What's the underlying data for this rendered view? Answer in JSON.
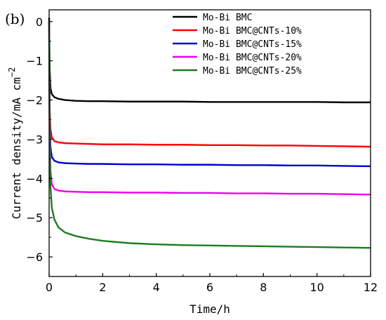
{
  "panel_label": "(b)",
  "chart_data": {
    "type": "line",
    "title": "",
    "xlabel": "Time/h",
    "ylabel": "Current density/mA cm",
    "ylabel_superscript": "−2",
    "xlim": [
      0,
      12
    ],
    "ylim": [
      -6.5,
      0.3
    ],
    "x_ticks": [
      0,
      2,
      4,
      6,
      8,
      10,
      12
    ],
    "y_ticks": [
      0,
      -1,
      -2,
      -3,
      -4,
      -5,
      -6
    ],
    "grid": false,
    "legend_position": "top-right",
    "series": [
      {
        "name": "Mo-Bi BMC",
        "color": "#000000",
        "x": [
          0,
          0.02,
          0.05,
          0.1,
          0.2,
          0.35,
          0.6,
          1,
          1.5,
          2,
          3,
          4,
          5,
          6,
          7,
          8,
          9,
          10,
          11,
          12
        ],
        "y": [
          0.1,
          -1.2,
          -1.7,
          -1.85,
          -1.93,
          -1.97,
          -2.0,
          -2.02,
          -2.03,
          -2.03,
          -2.04,
          -2.04,
          -2.04,
          -2.05,
          -2.05,
          -2.05,
          -2.05,
          -2.05,
          -2.06,
          -2.06
        ]
      },
      {
        "name": "Mo-Bi BMC@CNTs-10%",
        "color": "#ff0000",
        "x": [
          0,
          0.02,
          0.05,
          0.1,
          0.2,
          0.35,
          0.6,
          1,
          1.5,
          2,
          3,
          4,
          5,
          6,
          7,
          8,
          9,
          10,
          11,
          12
        ],
        "y": [
          0,
          -2.2,
          -2.75,
          -2.95,
          -3.05,
          -3.08,
          -3.1,
          -3.11,
          -3.12,
          -3.13,
          -3.13,
          -3.14,
          -3.14,
          -3.15,
          -3.15,
          -3.16,
          -3.16,
          -3.17,
          -3.18,
          -3.19
        ]
      },
      {
        "name": "Mo-Bi BMC@CNTs-15%",
        "color": "#0000d0",
        "x": [
          0,
          0.02,
          0.05,
          0.1,
          0.2,
          0.35,
          0.6,
          1,
          1.5,
          2,
          3,
          4,
          5,
          6,
          7,
          8,
          9,
          10,
          11,
          12
        ],
        "y": [
          0,
          -2.5,
          -3.2,
          -3.45,
          -3.55,
          -3.59,
          -3.61,
          -3.62,
          -3.63,
          -3.63,
          -3.64,
          -3.64,
          -3.65,
          -3.65,
          -3.66,
          -3.66,
          -3.67,
          -3.67,
          -3.68,
          -3.69
        ]
      },
      {
        "name": "Mo-Bi BMC@CNTs-20%",
        "color": "#ee00ee",
        "x": [
          0,
          0.02,
          0.05,
          0.1,
          0.2,
          0.35,
          0.6,
          1,
          1.5,
          2,
          3,
          4,
          5,
          6,
          7,
          8,
          9,
          10,
          11,
          12
        ],
        "y": [
          0,
          -2.8,
          -3.8,
          -4.15,
          -4.27,
          -4.31,
          -4.33,
          -4.34,
          -4.35,
          -4.35,
          -4.36,
          -4.36,
          -4.37,
          -4.37,
          -4.38,
          -4.38,
          -4.39,
          -4.39,
          -4.4,
          -4.41
        ]
      },
      {
        "name": "Mo-Bi BMC@CNTs-25%",
        "color": "#1e7b1e",
        "x": [
          0,
          0.02,
          0.05,
          0.1,
          0.2,
          0.35,
          0.6,
          1,
          1.5,
          2,
          3,
          4,
          5,
          6,
          7,
          8,
          9,
          10,
          11,
          12
        ],
        "y": [
          0,
          -3.0,
          -4.2,
          -4.75,
          -5.05,
          -5.25,
          -5.38,
          -5.47,
          -5.54,
          -5.59,
          -5.65,
          -5.68,
          -5.7,
          -5.71,
          -5.72,
          -5.73,
          -5.74,
          -5.75,
          -5.76,
          -5.77
        ]
      }
    ]
  }
}
